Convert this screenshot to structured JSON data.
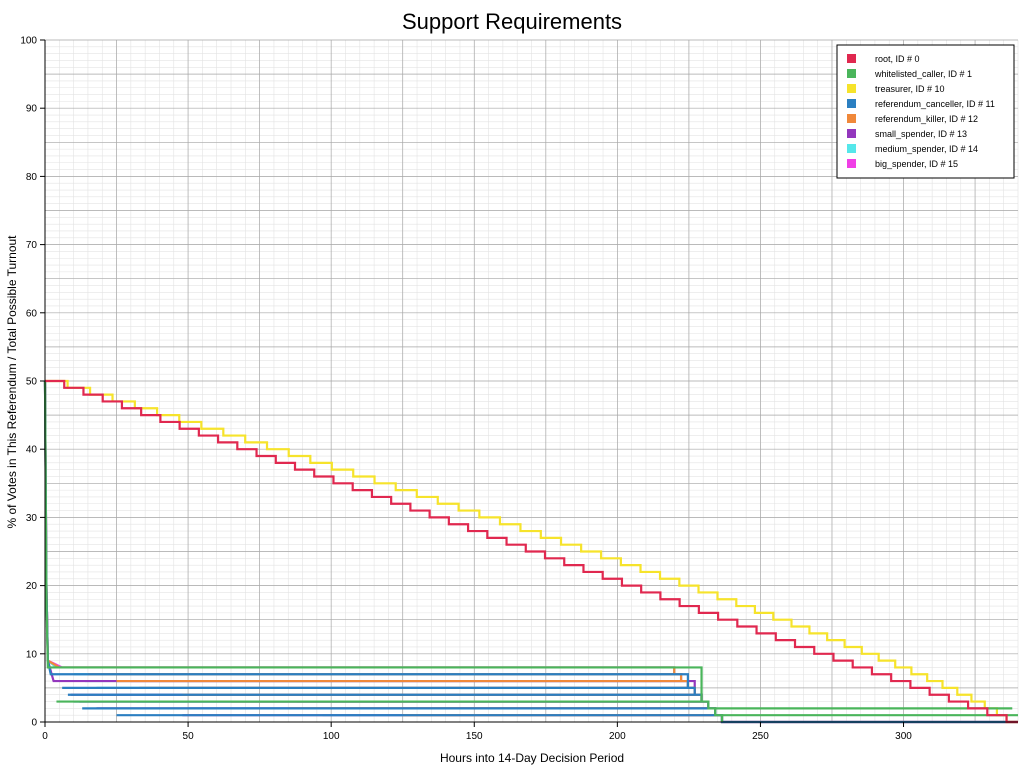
{
  "chart_data": {
    "type": "line",
    "title": "Support Requirements",
    "xlabel": "Hours into 14-Day Decision Period",
    "ylabel": "% of Votes in This Referendum / Total Possible Turnout",
    "xlim": [
      0,
      340
    ],
    "ylim": [
      0,
      100
    ],
    "x_ticks": [
      0,
      50,
      100,
      150,
      200,
      250,
      300
    ],
    "y_ticks": [
      0,
      10,
      20,
      30,
      40,
      50,
      60,
      70,
      80,
      90,
      100
    ],
    "grid": true,
    "step": true,
    "legend_position": "top-right",
    "series": [
      {
        "name": "root, ID # 0",
        "color": "#e0284f",
        "x": [
          0,
          340
        ],
        "y": [
          50,
          0
        ],
        "end_x": 336
      },
      {
        "name": "whitelisted_caller, ID # 1",
        "color": "#4ab55b",
        "points": [
          [
            0,
            50
          ],
          [
            0.3,
            30
          ],
          [
            0.5,
            18
          ],
          [
            1,
            8
          ],
          [
            2,
            3
          ],
          [
            4,
            2
          ],
          [
            336,
            2
          ],
          [
            338,
            1
          ],
          [
            340,
            0
          ]
        ]
      },
      {
        "name": "treasurer, ID # 10",
        "color": "#f6e32b",
        "x": [
          0,
          336
        ],
        "y": [
          50,
          0
        ],
        "curve": 0.85,
        "end_x": 336
      },
      {
        "name": "referendum_canceller, ID # 11",
        "color": "#2b7fc1",
        "points": [
          [
            0,
            50
          ],
          [
            0.5,
            20
          ],
          [
            1,
            9
          ],
          [
            2,
            7
          ],
          [
            4,
            5
          ],
          [
            6,
            4
          ],
          [
            8,
            3
          ],
          [
            10,
            2
          ],
          [
            13,
            1
          ],
          [
            25,
            1
          ],
          [
            26,
            0
          ],
          [
            340,
            0
          ]
        ]
      },
      {
        "name": "referendum_killer, ID # 12",
        "color": "#f0883a",
        "points": [
          [
            0,
            50
          ],
          [
            0.5,
            20
          ],
          [
            1,
            9
          ],
          [
            5,
            8
          ],
          [
            10,
            7
          ],
          [
            15,
            6
          ],
          [
            25,
            5
          ],
          [
            33,
            4
          ],
          [
            48,
            3
          ],
          [
            65,
            2
          ],
          [
            85,
            2
          ],
          [
            100,
            1
          ],
          [
            125,
            0
          ],
          [
            340,
            0
          ]
        ]
      },
      {
        "name": "small_spender, ID # 13",
        "color": "#9337bd",
        "points": [
          [
            0,
            50
          ],
          [
            0.5,
            20
          ],
          [
            1,
            9
          ],
          [
            3,
            6
          ],
          [
            6,
            4
          ],
          [
            9,
            3
          ],
          [
            12,
            2
          ],
          [
            18,
            1
          ],
          [
            48,
            1
          ],
          [
            49,
            0
          ],
          [
            340,
            0
          ]
        ]
      },
      {
        "name": "medium_spender, ID # 14",
        "color": "#55e7ea",
        "points": [
          [
            0,
            50
          ],
          [
            0.5,
            20
          ],
          [
            1,
            9
          ],
          [
            4,
            8
          ],
          [
            7,
            7
          ],
          [
            10,
            6
          ],
          [
            14,
            5
          ],
          [
            18,
            4
          ],
          [
            22,
            3
          ],
          [
            32,
            2
          ],
          [
            50,
            2
          ],
          [
            60,
            1
          ],
          [
            97,
            1
          ],
          [
            98,
            0
          ],
          [
            340,
            0
          ]
        ]
      },
      {
        "name": "big_spender, ID # 15",
        "color": "#f03fe6",
        "points": [
          [
            0,
            50
          ],
          [
            0.5,
            20
          ],
          [
            1,
            9
          ],
          [
            6,
            8
          ],
          [
            10,
            7
          ],
          [
            20,
            6
          ],
          [
            30,
            5
          ],
          [
            50,
            4
          ],
          [
            60,
            3
          ],
          [
            88,
            2
          ],
          [
            125,
            2
          ],
          [
            126,
            1
          ],
          [
            193,
            1
          ],
          [
            194,
            0
          ],
          [
            340,
            0
          ]
        ]
      }
    ]
  }
}
